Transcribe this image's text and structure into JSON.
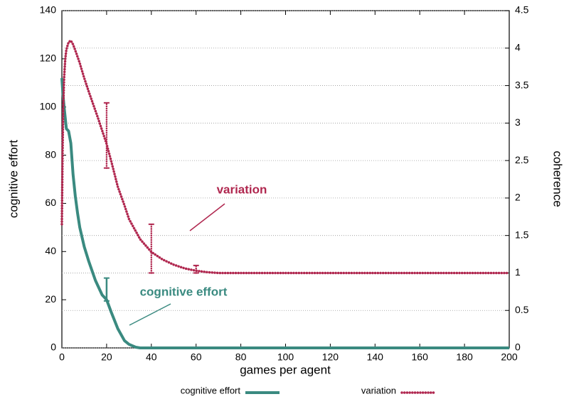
{
  "chart_data": {
    "type": "line",
    "xlabel": "games per agent",
    "ylabel": "cognitive effort",
    "y2label": "coherence",
    "xlim": [
      0,
      200
    ],
    "xticks": [
      0,
      20,
      40,
      60,
      80,
      100,
      120,
      140,
      160,
      180,
      200
    ],
    "ylim": [
      0,
      140
    ],
    "yticks": [
      0,
      20,
      40,
      60,
      80,
      100,
      120,
      140
    ],
    "y2lim": [
      0,
      4.5
    ],
    "y2ticks": [
      0,
      0.5,
      1,
      1.5,
      2,
      2.5,
      3,
      3.5,
      4,
      4.5
    ],
    "grid": "y2",
    "series": [
      {
        "name": "cognitive effort",
        "color": "#3a8a80",
        "axis": "y",
        "x": [
          0,
          0.5,
          1,
          2,
          3,
          4,
          5,
          6,
          7,
          8,
          10,
          12,
          15,
          18,
          20,
          22,
          25,
          28,
          30,
          33,
          35,
          40,
          60,
          100,
          150,
          200
        ],
        "values": [
          112,
          105,
          100,
          91,
          90,
          85,
          72,
          63,
          56,
          50,
          42,
          36,
          28,
          22,
          20,
          15,
          8,
          3,
          1.5,
          0.3,
          0,
          0,
          0,
          0,
          0,
          0
        ],
        "error_bars": [
          {
            "x": 20,
            "low": 19.5,
            "high": 29
          }
        ]
      },
      {
        "name": "variation",
        "color": "#b0274f",
        "axis": "y2",
        "x": [
          0,
          0.3,
          0.6,
          1,
          1.5,
          2,
          3,
          4,
          5,
          6,
          8,
          10,
          12,
          14,
          16,
          18,
          20,
          22,
          25,
          28,
          30,
          35,
          40,
          45,
          50,
          55,
          60,
          65,
          70,
          80,
          100,
          150,
          200
        ],
        "values": [
          1.65,
          2.6,
          3.2,
          3.6,
          3.85,
          3.98,
          4.08,
          4.1,
          4.05,
          3.97,
          3.8,
          3.6,
          3.42,
          3.25,
          3.08,
          2.9,
          2.72,
          2.5,
          2.15,
          1.9,
          1.72,
          1.45,
          1.28,
          1.18,
          1.11,
          1.06,
          1.03,
          1.01,
          1.0,
          1.0,
          1.0,
          1.0,
          1.0
        ],
        "error_bars": [
          {
            "x": 20,
            "low": 2.4,
            "high": 3.27
          },
          {
            "x": 40,
            "low": 1.0,
            "high": 1.65
          },
          {
            "x": 60,
            "low": 1.0,
            "high": 1.1
          }
        ]
      }
    ],
    "annotations": [
      "variation",
      "cognitive effort"
    ]
  }
}
